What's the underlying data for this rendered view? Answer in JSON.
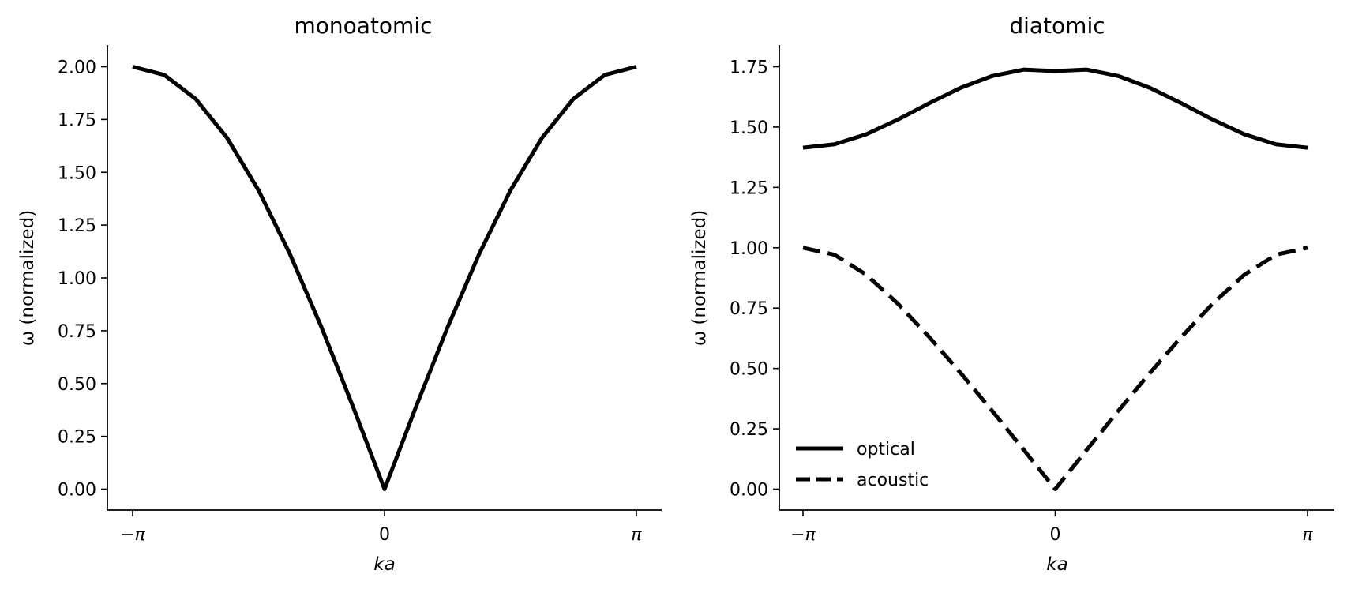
{
  "chart_data": [
    {
      "type": "line",
      "title": "monoatomic",
      "xlabel": "ka",
      "ylabel": "ω (normalized)",
      "xlim": [
        -3.14159,
        3.14159
      ],
      "ylim": [
        -0.1,
        2.1
      ],
      "x_ticks": [
        {
          "value": -3.14159,
          "label": "−π"
        },
        {
          "value": 0,
          "label": "0"
        },
        {
          "value": 3.14159,
          "label": "π"
        }
      ],
      "y_ticks": [
        {
          "value": 0.0,
          "label": "0.00"
        },
        {
          "value": 0.25,
          "label": "0.25"
        },
        {
          "value": 0.5,
          "label": "0.50"
        },
        {
          "value": 0.75,
          "label": "0.75"
        },
        {
          "value": 1.0,
          "label": "1.00"
        },
        {
          "value": 1.25,
          "label": "1.25"
        },
        {
          "value": 1.5,
          "label": "1.50"
        },
        {
          "value": 1.75,
          "label": "1.75"
        },
        {
          "value": 2.0,
          "label": "2.00"
        }
      ],
      "grid": false,
      "series": [
        {
          "line_style": "solid",
          "color": "#000000",
          "x": [
            -3.1416,
            -2.7489,
            -2.3562,
            -1.9635,
            -1.5708,
            -1.1781,
            -0.7854,
            -0.3927,
            0,
            0.3927,
            0.7854,
            1.1781,
            1.5708,
            1.9635,
            2.3562,
            2.7489,
            3.1416
          ],
          "y": [
            2.0,
            1.9616,
            1.8478,
            1.6629,
            1.4142,
            1.1111,
            0.7654,
            0.3902,
            0.0,
            0.3902,
            0.7654,
            1.1111,
            1.4142,
            1.6629,
            1.8478,
            1.9616,
            2.0
          ]
        }
      ]
    },
    {
      "type": "line",
      "title": "diatomic",
      "xlabel": "ka",
      "ylabel": "ω (normalized)",
      "xlim": [
        -3.14159,
        3.14159
      ],
      "ylim": [
        -0.08,
        1.82
      ],
      "x_ticks": [
        {
          "value": -3.14159,
          "label": "−π"
        },
        {
          "value": 0,
          "label": "0"
        },
        {
          "value": 3.14159,
          "label": "π"
        }
      ],
      "y_ticks": [
        {
          "value": 0.0,
          "label": "0.00"
        },
        {
          "value": 0.25,
          "label": "0.25"
        },
        {
          "value": 0.5,
          "label": "0.50"
        },
        {
          "value": 0.75,
          "label": "0.75"
        },
        {
          "value": 1.0,
          "label": "1.00"
        },
        {
          "value": 1.25,
          "label": "1.25"
        },
        {
          "value": 1.5,
          "label": "1.50"
        },
        {
          "value": 1.75,
          "label": "1.75"
        }
      ],
      "grid": false,
      "legend_position": "lower-left",
      "series": [
        {
          "name": "optical",
          "line_style": "solid",
          "color": "#000000",
          "x": [
            -3.1416,
            -2.7489,
            -2.3562,
            -1.9635,
            -1.5708,
            -1.1781,
            -0.7854,
            -0.3927,
            0,
            0.3927,
            0.7854,
            1.1781,
            1.5708,
            1.9635,
            2.3562,
            2.7489,
            3.1416
          ],
          "y": [
            1.4142,
            1.4287,
            1.4697,
            1.5304,
            1.5986,
            1.6625,
            1.7115,
            1.7381,
            1.7321,
            1.7381,
            1.7115,
            1.6625,
            1.5986,
            1.5304,
            1.4697,
            1.4287,
            1.4142
          ]
        },
        {
          "name": "acoustic",
          "line_style": "dashed",
          "color": "#000000",
          "x": [
            -3.1416,
            -2.7489,
            -2.3562,
            -1.9635,
            -1.5708,
            -1.1781,
            -0.7854,
            -0.3927,
            0,
            0.3927,
            0.7854,
            1.1781,
            1.5708,
            1.9635,
            2.3562,
            2.7489,
            3.1416
          ],
          "y": [
            1.0,
            0.9709,
            0.8888,
            0.7695,
            0.6306,
            0.4813,
            0.3243,
            0.1628,
            0.0,
            0.1628,
            0.3243,
            0.4813,
            0.6306,
            0.7695,
            0.8888,
            0.9709,
            1.0
          ]
        }
      ]
    }
  ]
}
